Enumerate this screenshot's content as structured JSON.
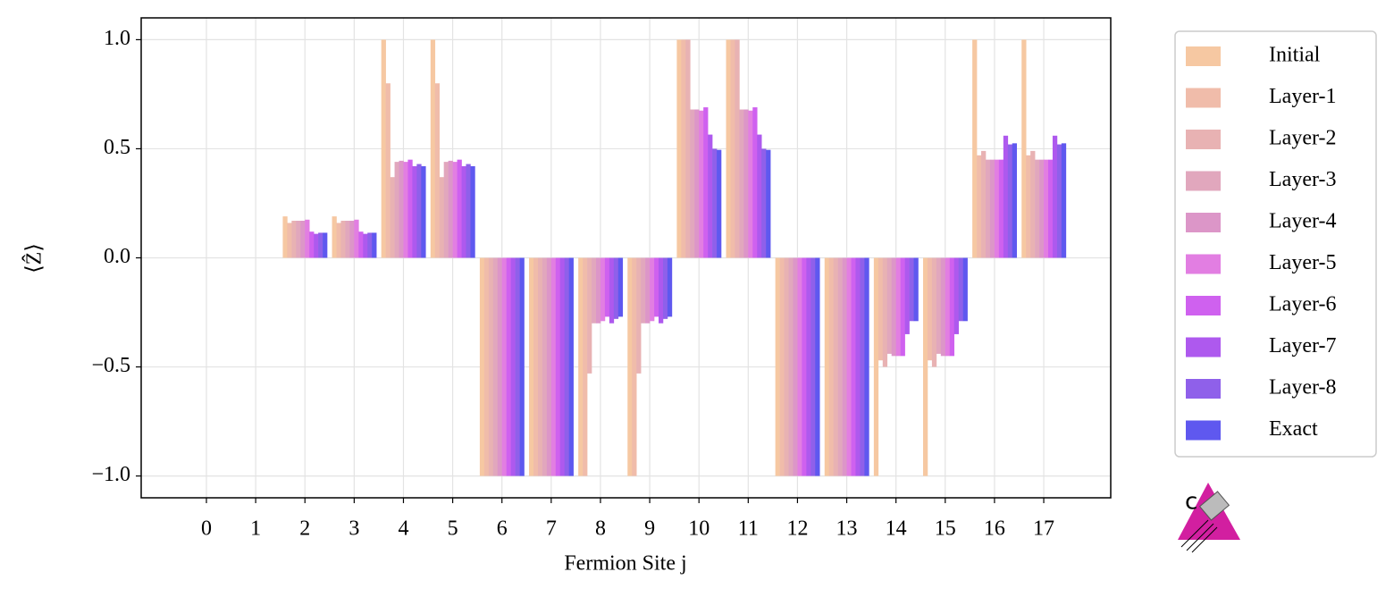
{
  "chart_data": {
    "type": "bar",
    "x_label": "Fermion Site j",
    "y_label": "⟨Ẑ⟩",
    "categories": [
      "0",
      "1",
      "2",
      "3",
      "4",
      "5",
      "6",
      "7",
      "8",
      "9",
      "10",
      "11",
      "12",
      "13",
      "14",
      "15",
      "16",
      "17"
    ],
    "ylim": [
      -1.1,
      1.1
    ],
    "yticks": [
      {
        "value": 1,
        "label": "1.0"
      },
      {
        "value": 0.5,
        "label": "0.5"
      },
      {
        "value": 0,
        "label": "0.0"
      },
      {
        "value": -0.5,
        "label": "−0.5"
      },
      {
        "value": -1,
        "label": "−1.0"
      }
    ],
    "grid": true,
    "legend": "outside-right",
    "series": [
      {
        "name": "Initial",
        "color": "#f6c8a2",
        "values": [
          0,
          0,
          0.19,
          0.19,
          1,
          1,
          -1,
          -1,
          -1,
          -1,
          1,
          1,
          -1,
          -1,
          -1,
          -1,
          1,
          1
        ]
      },
      {
        "name": "Layer-1",
        "color": "#f0bcaa",
        "values": [
          0,
          0,
          0.16,
          0.16,
          0.8,
          0.8,
          -1,
          -1,
          -1,
          -1,
          1,
          1,
          -1,
          -1,
          -0.47,
          -0.47,
          0.47,
          0.47
        ]
      },
      {
        "name": "Layer-2",
        "color": "#e8b2b3",
        "values": [
          0,
          0,
          0.17,
          0.17,
          0.37,
          0.37,
          -1,
          -1,
          -0.53,
          -0.53,
          1,
          1,
          -1,
          -1,
          -0.5,
          -0.5,
          0.49,
          0.49
        ]
      },
      {
        "name": "Layer-3",
        "color": "#e1a7bd",
        "values": [
          0,
          0,
          0.17,
          0.17,
          0.44,
          0.44,
          -1,
          -1,
          -0.3,
          -0.3,
          0.68,
          0.68,
          -1,
          -1,
          -0.44,
          -0.44,
          0.45,
          0.45
        ]
      },
      {
        "name": "Layer-4",
        "color": "#dc96c8",
        "values": [
          0,
          0,
          0.17,
          0.17,
          0.445,
          0.445,
          -1,
          -1,
          -0.3,
          -0.3,
          0.68,
          0.68,
          -1,
          -1,
          -0.45,
          -0.45,
          0.45,
          0.45
        ]
      },
      {
        "name": "Layer-5",
        "color": "#e27ee2",
        "values": [
          0,
          0,
          0.175,
          0.175,
          0.44,
          0.44,
          -1,
          -1,
          -0.29,
          -0.29,
          0.675,
          0.675,
          -1,
          -1,
          -0.45,
          -0.45,
          0.45,
          0.45
        ]
      },
      {
        "name": "Layer-6",
        "color": "#cf61ef",
        "values": [
          0,
          0,
          0.12,
          0.12,
          0.45,
          0.45,
          -1,
          -1,
          -0.27,
          -0.27,
          0.69,
          0.69,
          -1,
          -1,
          -0.45,
          -0.45,
          0.45,
          0.45
        ]
      },
      {
        "name": "Layer-7",
        "color": "#ae59ee",
        "values": [
          0,
          0,
          0.11,
          0.11,
          0.42,
          0.42,
          -1,
          -1,
          -0.3,
          -0.3,
          0.565,
          0.565,
          -1,
          -1,
          -0.35,
          -0.35,
          0.56,
          0.56
        ]
      },
      {
        "name": "Layer-8",
        "color": "#8f60ea",
        "values": [
          0,
          0,
          0.115,
          0.115,
          0.43,
          0.43,
          -1,
          -1,
          -0.28,
          -0.28,
          0.5,
          0.5,
          -1,
          -1,
          -0.29,
          -0.29,
          0.52,
          0.52
        ]
      },
      {
        "name": "Exact",
        "color": "#5f58ef",
        "values": [
          0,
          0,
          0.115,
          0.115,
          0.42,
          0.42,
          -1,
          -1,
          -0.27,
          -0.27,
          0.495,
          0.495,
          -1,
          -1,
          -0.29,
          -0.29,
          0.525,
          0.525
        ]
      }
    ]
  }
}
